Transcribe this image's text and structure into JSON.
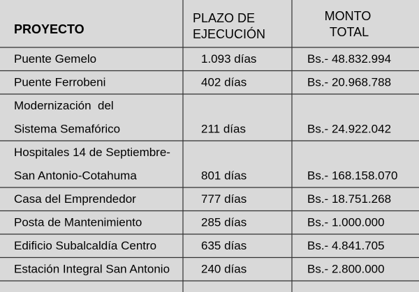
{
  "table": {
    "header": {
      "project": "PROYECTO",
      "term": [
        "PLAZO DE",
        "EJECUCIÓN"
      ],
      "amount": [
        "MONTO",
        "TOTAL"
      ]
    },
    "rows": [
      [
        [
          "Puente Gemelo"
        ],
        "1.093 días",
        "Bs.- 48.832.994"
      ],
      [
        [
          "Puente Ferrobeni"
        ],
        "402 días",
        "Bs.- 20.968.788"
      ],
      [
        [
          "Modernización  del",
          "Sistema Semafórico"
        ],
        "211 días",
        "Bs.- 24.922.042"
      ],
      [
        [
          "Hospitales 14 de Septiembre-",
          "San Antonio-Cotahuma"
        ],
        "801 días",
        "Bs.- 168.158.070"
      ],
      [
        [
          "Casa del Emprendedor"
        ],
        "777 días",
        "Bs.- 18.751.268"
      ],
      [
        [
          "Posta de Mantenimiento"
        ],
        "285 días",
        "Bs.- 1.000.000"
      ],
      [
        [
          "Edificio Subalcaldía Centro"
        ],
        "635 días",
        "Bs.- 4.841.705"
      ],
      [
        [
          "Estación Integral San Antonio"
        ],
        "240 días",
        "Bs.- 2.800.000"
      ]
    ]
  }
}
